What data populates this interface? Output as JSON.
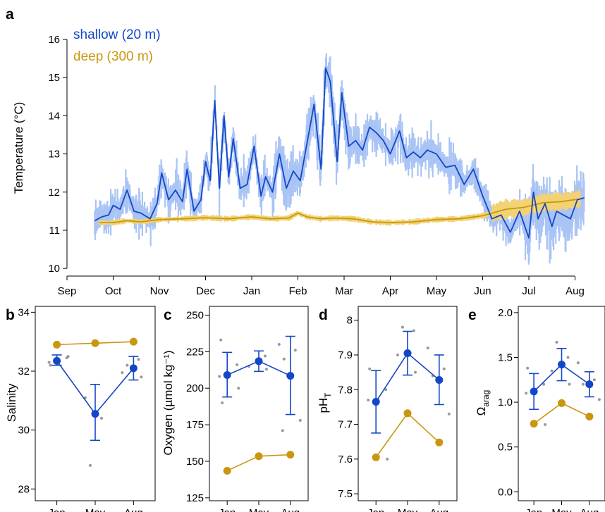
{
  "colors": {
    "shallow": "#1447c8",
    "shallow_band": "#a9c4f5",
    "deep": "#c9960f",
    "deep_band": "#f2d272",
    "replicate": "#999999"
  },
  "chart_data": [
    {
      "id": "a",
      "panel_label": "a",
      "type": "line",
      "ylabel": "Temperature (°C)",
      "ylim": [
        9.8,
        16.7
      ],
      "yticks": [
        10,
        11,
        12,
        13,
        14,
        15,
        16
      ],
      "xlim": [
        0,
        11.45
      ],
      "xtick_positions": [
        0,
        1,
        2,
        3,
        4,
        5,
        6,
        7,
        8,
        9,
        10,
        11
      ],
      "xtick_labels": [
        "Sep",
        "Oct",
        "Nov",
        "Dec",
        "Jan",
        "Feb",
        "Mar",
        "Apr",
        "May",
        "Jun",
        "Jul",
        "Aug"
      ],
      "legend_position": "top-left",
      "series": [
        {
          "name": "shallow (20 m)",
          "x": [
            0.6,
            0.75,
            0.9,
            1.0,
            1.15,
            1.3,
            1.45,
            1.6,
            1.8,
            1.95,
            2.05,
            2.2,
            2.35,
            2.5,
            2.6,
            2.75,
            2.9,
            3.0,
            3.1,
            3.2,
            3.3,
            3.4,
            3.5,
            3.6,
            3.75,
            3.9,
            4.05,
            4.2,
            4.3,
            4.45,
            4.6,
            4.75,
            4.9,
            5.05,
            5.2,
            5.35,
            5.5,
            5.6,
            5.7,
            5.85,
            5.95,
            6.1,
            6.25,
            6.4,
            6.55,
            6.7,
            6.85,
            7.0,
            7.2,
            7.35,
            7.5,
            7.65,
            7.8,
            8.0,
            8.2,
            8.4,
            8.6,
            8.8,
            9.0,
            9.2,
            9.4,
            9.6,
            9.8,
            10.0,
            10.1,
            10.2,
            10.35,
            10.5,
            10.6,
            10.75,
            10.9,
            11.05,
            11.2
          ],
          "y": [
            11.25,
            11.35,
            11.4,
            11.65,
            11.55,
            12.05,
            11.5,
            11.45,
            11.3,
            11.7,
            12.5,
            11.8,
            12.05,
            11.75,
            12.6,
            11.5,
            11.8,
            12.8,
            12.3,
            14.4,
            12.1,
            14.0,
            12.4,
            13.4,
            12.1,
            12.2,
            13.2,
            11.9,
            12.4,
            12.0,
            13.0,
            12.1,
            12.55,
            12.3,
            13.3,
            14.3,
            12.6,
            15.25,
            14.9,
            12.8,
            14.6,
            13.2,
            13.35,
            13.1,
            13.7,
            13.55,
            13.35,
            13.0,
            13.6,
            12.9,
            13.05,
            12.9,
            13.1,
            13.0,
            12.65,
            12.7,
            12.2,
            12.6,
            11.9,
            11.3,
            11.4,
            10.95,
            11.5,
            10.8,
            12.0,
            11.3,
            11.7,
            11.1,
            11.5,
            11.4,
            11.3,
            11.8,
            11.85
          ]
        },
        {
          "name": "deep (300 m)",
          "x": [
            0.7,
            1.0,
            1.3,
            1.6,
            2.0,
            2.5,
            3.0,
            3.5,
            4.0,
            4.4,
            4.8,
            5.0,
            5.2,
            5.5,
            5.8,
            6.2,
            6.6,
            7.0,
            7.5,
            8.0,
            8.5,
            9.0,
            9.5,
            9.9,
            10.3,
            10.7,
            11.1
          ],
          "y": [
            11.2,
            11.2,
            11.25,
            11.22,
            11.28,
            11.3,
            11.33,
            11.3,
            11.35,
            11.3,
            11.32,
            11.45,
            11.35,
            11.3,
            11.32,
            11.3,
            11.22,
            11.2,
            11.22,
            11.28,
            11.3,
            11.38,
            11.55,
            11.6,
            11.72,
            11.75,
            11.82
          ]
        }
      ]
    },
    {
      "id": "b",
      "panel_label": "b",
      "type": "scatter",
      "ylabel": "Salinity",
      "ylim": [
        27.6,
        34.2
      ],
      "yticks": [
        28,
        30,
        32,
        34
      ],
      "categories": [
        "Jan",
        "May",
        "Aug"
      ],
      "series": [
        {
          "name": "shallow",
          "values": [
            32.35,
            30.55,
            32.1
          ],
          "error_low": [
            32.2,
            29.65,
            31.7
          ],
          "error_high": [
            32.55,
            31.55,
            32.5
          ]
        },
        {
          "name": "deep",
          "values": [
            32.9,
            32.95,
            33.0
          ]
        }
      ],
      "replicates": [
        {
          "x": 0,
          "y": 32.2
        },
        {
          "x": 0,
          "y": 32.45
        },
        {
          "x": 0,
          "y": 32.3
        },
        {
          "x": 0,
          "y": 32.5
        },
        {
          "x": 1,
          "y": 28.8
        },
        {
          "x": 1,
          "y": 30.4
        },
        {
          "x": 1,
          "y": 31.1
        },
        {
          "x": 2,
          "y": 31.8
        },
        {
          "x": 2,
          "y": 31.95
        },
        {
          "x": 2,
          "y": 32.4
        },
        {
          "x": 2,
          "y": 32.2
        }
      ]
    },
    {
      "id": "c",
      "panel_label": "c",
      "type": "scatter",
      "ylabel": "Oxygen (µmol kg⁻¹)",
      "ylim": [
        123,
        256
      ],
      "yticks": [
        125,
        150,
        175,
        200,
        225,
        250
      ],
      "categories": [
        "Jan",
        "May",
        "Aug"
      ],
      "series": [
        {
          "name": "shallow",
          "values": [
            209,
            218.5,
            208.5
          ],
          "error_low": [
            194,
            211.5,
            182
          ],
          "error_high": [
            224.5,
            225.5,
            235.5
          ]
        },
        {
          "name": "deep",
          "values": [
            143.5,
            153.5,
            154.5
          ]
        }
      ],
      "replicates": [
        {
          "x": 0,
          "y": 233
        },
        {
          "x": 0,
          "y": 216
        },
        {
          "x": 0,
          "y": 208
        },
        {
          "x": 0,
          "y": 200
        },
        {
          "x": 0,
          "y": 190
        },
        {
          "x": 1,
          "y": 222
        },
        {
          "x": 1,
          "y": 215
        },
        {
          "x": 1,
          "y": 213
        },
        {
          "x": 2,
          "y": 230
        },
        {
          "x": 2,
          "y": 226
        },
        {
          "x": 2,
          "y": 220
        },
        {
          "x": 2,
          "y": 178
        },
        {
          "x": 2,
          "y": 171
        }
      ]
    },
    {
      "id": "d",
      "panel_label": "d",
      "type": "scatter",
      "ylabel": "pHT",
      "ylabel_main": "pH",
      "ylabel_sub": "T",
      "ylim": [
        7.48,
        8.04
      ],
      "yticks": [
        7.5,
        7.6,
        7.7,
        7.8,
        7.9,
        8.0
      ],
      "categories": [
        "Jan",
        "May",
        "Aug"
      ],
      "series": [
        {
          "name": "shallow",
          "values": [
            7.765,
            7.905,
            7.828
          ],
          "error_low": [
            7.675,
            7.842,
            7.757
          ],
          "error_high": [
            7.855,
            7.968,
            7.9
          ]
        },
        {
          "name": "deep",
          "values": [
            7.605,
            7.732,
            7.648
          ]
        }
      ],
      "replicates": [
        {
          "x": 0,
          "y": 7.86
        },
        {
          "x": 0,
          "y": 7.8
        },
        {
          "x": 0,
          "y": 7.77
        },
        {
          "x": 0,
          "y": 7.6
        },
        {
          "x": 1,
          "y": 7.98
        },
        {
          "x": 1,
          "y": 7.97
        },
        {
          "x": 1,
          "y": 7.9
        },
        {
          "x": 1,
          "y": 7.85
        },
        {
          "x": 2,
          "y": 7.92
        },
        {
          "x": 2,
          "y": 7.86
        },
        {
          "x": 2,
          "y": 7.84
        },
        {
          "x": 2,
          "y": 7.73
        }
      ]
    },
    {
      "id": "e",
      "panel_label": "e",
      "type": "scatter",
      "ylabel": "Ωarag",
      "ylabel_main": "Ω",
      "ylabel_sub": "arag",
      "ylim": [
        -0.1,
        2.07
      ],
      "yticks": [
        0.0,
        0.5,
        1.0,
        1.5,
        2.0
      ],
      "ytick_labels": [
        "0.0",
        "0.5",
        "1.0",
        "1.5",
        "2.0"
      ],
      "categories": [
        "Jan",
        "May",
        "Aug"
      ],
      "series": [
        {
          "name": "shallow",
          "values": [
            1.12,
            1.42,
            1.2
          ],
          "error_low": [
            0.92,
            1.24,
            1.06
          ],
          "error_high": [
            1.32,
            1.6,
            1.34
          ]
        },
        {
          "name": "deep",
          "values": [
            0.76,
            0.99,
            0.84
          ]
        }
      ],
      "replicates": [
        {
          "x": 0,
          "y": 1.38
        },
        {
          "x": 0,
          "y": 1.2
        },
        {
          "x": 0,
          "y": 1.1
        },
        {
          "x": 0,
          "y": 0.75
        },
        {
          "x": 1,
          "y": 1.67
        },
        {
          "x": 1,
          "y": 1.5
        },
        {
          "x": 1,
          "y": 1.35
        },
        {
          "x": 1,
          "y": 1.2
        },
        {
          "x": 2,
          "y": 1.44
        },
        {
          "x": 2,
          "y": 1.25
        },
        {
          "x": 2,
          "y": 1.2
        },
        {
          "x": 2,
          "y": 1.03
        }
      ]
    }
  ]
}
